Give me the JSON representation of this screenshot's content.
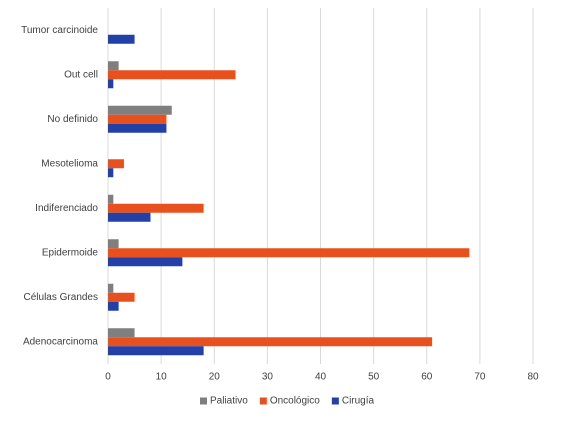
{
  "chart_data": {
    "type": "hbar",
    "categories": [
      "Tumor carcinoide",
      "Out cell",
      "No definido",
      "Mesotelioma",
      "Indiferenciado",
      "Epidermoide",
      "Células Grandes",
      "Adenocarcinoma"
    ],
    "series": [
      {
        "name": "Paliativo",
        "color": "#7f7f7f",
        "values": [
          0,
          2,
          12,
          0,
          1,
          2,
          1,
          5
        ]
      },
      {
        "name": "Oncológico",
        "color": "#e8501e",
        "values": [
          0,
          24,
          11,
          3,
          18,
          68,
          5,
          61
        ]
      },
      {
        "name": "Cirugía",
        "color": "#2340a8",
        "values": [
          5,
          1,
          11,
          1,
          8,
          14,
          2,
          18
        ]
      }
    ],
    "xlim": [
      0,
      80
    ],
    "xticks": [
      0,
      10,
      20,
      30,
      40,
      50,
      60,
      70,
      80
    ],
    "grid": true,
    "legend": "bottom"
  }
}
